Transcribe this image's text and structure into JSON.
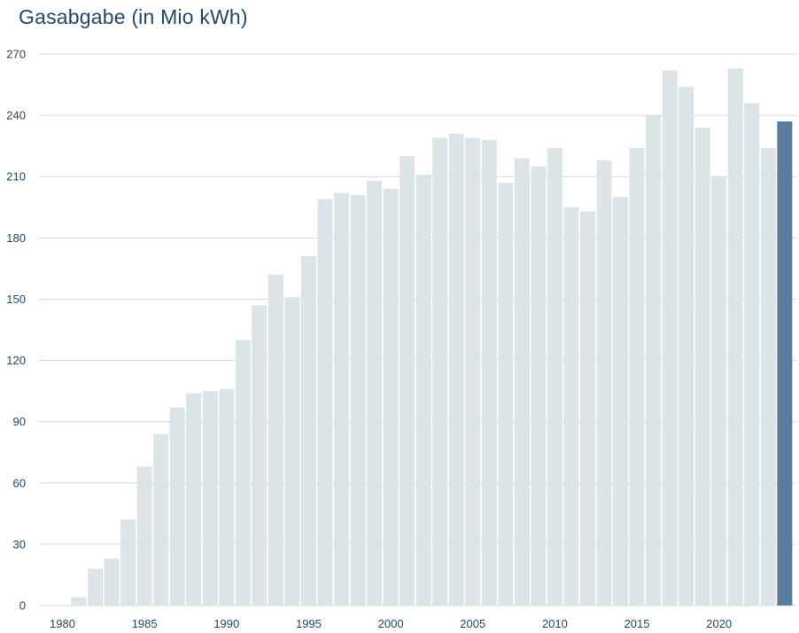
{
  "chart_data": {
    "type": "bar",
    "title": "Gasabgabe (in Mio kWh)",
    "xlabel": "",
    "ylabel": "",
    "ylim": [
      0,
      270
    ],
    "yticks": [
      "0",
      "30",
      "60",
      "90",
      "120",
      "150",
      "180",
      "210",
      "240",
      "270"
    ],
    "xticks": [
      "1980",
      "1985",
      "1990",
      "1995",
      "2000",
      "2005",
      "2010",
      "2015",
      "2020"
    ],
    "grid": "horizontal",
    "colors": {
      "bar": "#dde4e8",
      "highlight": "#587c9e",
      "gridline": "#d3d9de",
      "text": "#24476b"
    },
    "highlight_category": "2024",
    "categories": [
      "1980",
      "1981",
      "1982",
      "1983",
      "1984",
      "1985",
      "1986",
      "1987",
      "1988",
      "1989",
      "1990",
      "1991",
      "1992",
      "1993",
      "1994",
      "1995",
      "1996",
      "1997",
      "1998",
      "1999",
      "2000",
      "2001",
      "2002",
      "2003",
      "2004",
      "2005",
      "2006",
      "2007",
      "2008",
      "2009",
      "2010",
      "2011",
      "2012",
      "2013",
      "2014",
      "2015",
      "2016",
      "2017",
      "2018",
      "2019",
      "2020",
      "2021",
      "2022",
      "2023",
      "2024"
    ],
    "values": [
      0,
      4,
      18,
      23,
      42,
      68,
      84,
      97,
      104,
      105,
      106,
      130,
      147,
      162,
      151,
      171,
      199,
      202,
      201,
      208,
      204,
      220,
      211,
      229,
      231,
      229,
      228,
      207,
      219,
      215,
      224,
      195,
      193,
      218,
      200,
      224,
      240,
      262,
      254,
      234,
      210,
      263,
      246,
      224,
      237
    ]
  }
}
